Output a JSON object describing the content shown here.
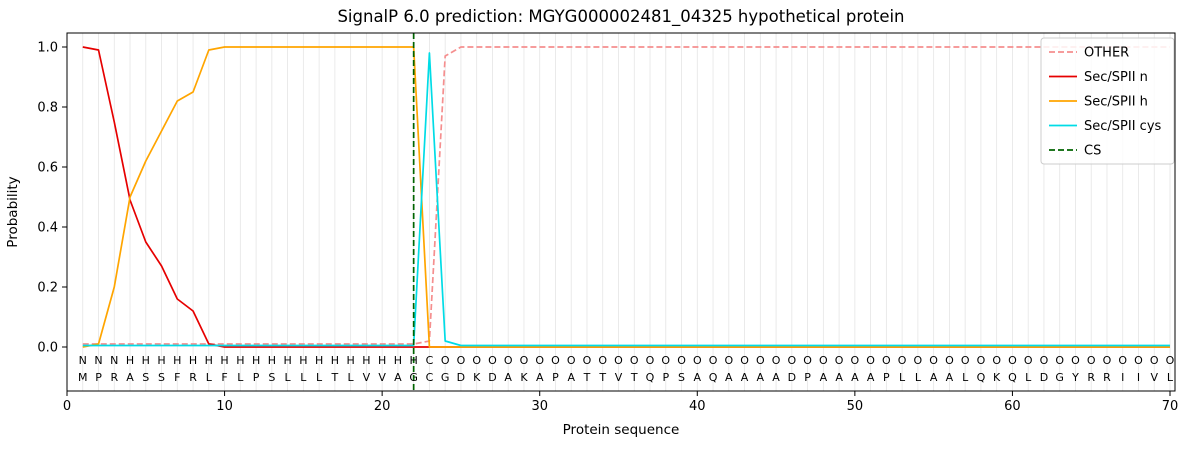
{
  "chart_data": {
    "type": "line",
    "title": "SignalP 6.0 prediction: MGYG000002481_04325 hypothetical protein",
    "xlabel": "Protein sequence",
    "ylabel": "Probability",
    "xlim": [
      0,
      70.3
    ],
    "ylim": [
      -0.15,
      1.05
    ],
    "x_ticks": [
      0,
      10,
      20,
      30,
      40,
      50,
      60,
      70
    ],
    "x_tick_labels": [
      "0",
      "10",
      "20",
      "30",
      "40",
      "50",
      "60",
      "70"
    ],
    "y_ticks": [
      0.0,
      0.2,
      0.4,
      0.6,
      0.8,
      1.0
    ],
    "y_tick_labels": [
      "0.0",
      "0.2",
      "0.4",
      "0.6",
      "0.8",
      "1.0"
    ],
    "grid": "vertical-line-per-residue",
    "grid_color": "#e5e5e5",
    "legend_position": "upper right",
    "sequence": "MPRASSFRLFLPSLLLTLVVAGCGDKDAKAPATTVTQPSAQAAAADPAAAAPLLAALQKQLDGYRRIIVL",
    "sequence_color": "#000000",
    "annotation_regions": [
      {
        "label": "N",
        "start": 1,
        "end": 3,
        "color": "#e60000"
      },
      {
        "label": "H",
        "start": 4,
        "end": 22,
        "color": "#ffa500"
      },
      {
        "label": "C",
        "start": 23,
        "end": 23,
        "color": "#00dce6"
      },
      {
        "label": "O",
        "start": 24,
        "end": 70,
        "color": "#8c8c8c"
      }
    ],
    "series": [
      {
        "name": "OTHER",
        "color": "#f58f8f",
        "style": "dashed",
        "points": [
          [
            1,
            0.01
          ],
          [
            22,
            0.01
          ],
          [
            23,
            0.02
          ],
          [
            24,
            0.97
          ],
          [
            25,
            1.0
          ],
          [
            70,
            1.0
          ]
        ]
      },
      {
        "name": "Sec/SPII n",
        "color": "#e60000",
        "style": "solid",
        "points": [
          [
            1,
            1.0
          ],
          [
            2,
            0.99
          ],
          [
            3,
            0.75
          ],
          [
            4,
            0.49
          ],
          [
            5,
            0.35
          ],
          [
            6,
            0.27
          ],
          [
            7,
            0.16
          ],
          [
            8,
            0.12
          ],
          [
            9,
            0.01
          ],
          [
            10,
            0.0
          ],
          [
            70,
            0.0
          ]
        ]
      },
      {
        "name": "Sec/SPII h",
        "color": "#ffa500",
        "style": "solid",
        "points": [
          [
            1,
            0.0
          ],
          [
            2,
            0.01
          ],
          [
            3,
            0.2
          ],
          [
            4,
            0.5
          ],
          [
            5,
            0.62
          ],
          [
            6,
            0.72
          ],
          [
            7,
            0.82
          ],
          [
            8,
            0.85
          ],
          [
            9,
            0.99
          ],
          [
            10,
            1.0
          ],
          [
            22,
            1.0
          ],
          [
            23,
            0.0
          ],
          [
            70,
            0.0
          ]
        ]
      },
      {
        "name": "Sec/SPII cys",
        "color": "#00dce6",
        "style": "solid",
        "points": [
          [
            1,
            0.005
          ],
          [
            22,
            0.005
          ],
          [
            23,
            0.98
          ],
          [
            24,
            0.02
          ],
          [
            25,
            0.005
          ],
          [
            70,
            0.005
          ]
        ]
      }
    ],
    "cleavage_site": {
      "name": "CS",
      "x": 22,
      "color": "#006400",
      "style": "dashed"
    },
    "legend": [
      {
        "label": "OTHER",
        "color": "#f58f8f",
        "style": "dashed"
      },
      {
        "label": "Sec/SPII n",
        "color": "#e60000",
        "style": "solid"
      },
      {
        "label": "Sec/SPII h",
        "color": "#ffa500",
        "style": "solid"
      },
      {
        "label": "Sec/SPII cys",
        "color": "#00dce6",
        "style": "solid"
      },
      {
        "label": "CS",
        "color": "#006400",
        "style": "dashed"
      }
    ]
  }
}
